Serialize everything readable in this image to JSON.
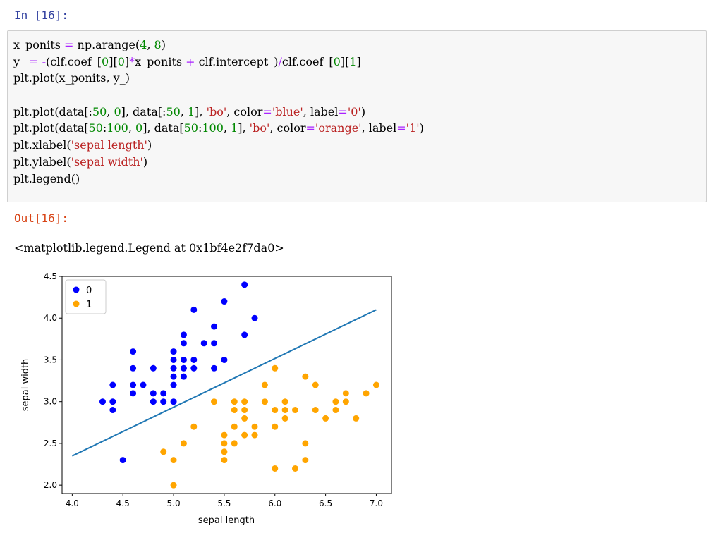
{
  "cell": {
    "in_prompt": "In [16]:",
    "out_prompt": "Out[16]:",
    "output_text": "<matplotlib.legend.Legend at 0x1bf4e2f7da0>"
  },
  "chart_data": {
    "type": "scatter",
    "xlabel": "sepal length",
    "ylabel": "sepal width",
    "xlim": [
      3.9,
      7.15
    ],
    "ylim": [
      1.9,
      4.5
    ],
    "x_ticks": [
      "4.0",
      "4.5",
      "5.0",
      "5.5",
      "6.0",
      "6.5",
      "7.0"
    ],
    "y_ticks": [
      "2.0",
      "2.5",
      "3.0",
      "3.5",
      "4.0",
      "4.5"
    ],
    "grid": false,
    "legend": "top-left",
    "line": {
      "x": [
        4.0,
        7.0
      ],
      "y": [
        2.35,
        4.1
      ],
      "color": "#1f77b4"
    },
    "series": [
      {
        "name": "0",
        "color": "#0000ff",
        "points": [
          [
            4.3,
            3.0
          ],
          [
            4.4,
            3.2
          ],
          [
            4.4,
            3.0
          ],
          [
            4.4,
            2.9
          ],
          [
            4.5,
            2.3
          ],
          [
            4.6,
            3.6
          ],
          [
            4.6,
            3.4
          ],
          [
            4.6,
            3.2
          ],
          [
            4.6,
            3.1
          ],
          [
            4.7,
            3.2
          ],
          [
            4.8,
            3.4
          ],
          [
            4.8,
            3.1
          ],
          [
            4.8,
            3.0
          ],
          [
            4.9,
            3.1
          ],
          [
            4.9,
            3.0
          ],
          [
            5.0,
            3.6
          ],
          [
            5.0,
            3.5
          ],
          [
            5.0,
            3.4
          ],
          [
            5.0,
            3.3
          ],
          [
            5.0,
            3.2
          ],
          [
            5.0,
            3.0
          ],
          [
            5.1,
            3.8
          ],
          [
            5.1,
            3.7
          ],
          [
            5.1,
            3.5
          ],
          [
            5.1,
            3.4
          ],
          [
            5.1,
            3.3
          ],
          [
            5.2,
            4.1
          ],
          [
            5.2,
            3.5
          ],
          [
            5.2,
            3.4
          ],
          [
            5.3,
            3.7
          ],
          [
            5.4,
            3.9
          ],
          [
            5.4,
            3.7
          ],
          [
            5.4,
            3.4
          ],
          [
            5.5,
            4.2
          ],
          [
            5.5,
            3.5
          ],
          [
            5.7,
            4.4
          ],
          [
            5.7,
            3.8
          ],
          [
            5.8,
            4.0
          ]
        ]
      },
      {
        "name": "1",
        "color": "#ffa500",
        "points": [
          [
            4.9,
            2.4
          ],
          [
            5.0,
            2.3
          ],
          [
            5.0,
            2.0
          ],
          [
            5.1,
            2.5
          ],
          [
            5.2,
            2.7
          ],
          [
            5.4,
            3.0
          ],
          [
            5.5,
            2.6
          ],
          [
            5.5,
            2.5
          ],
          [
            5.5,
            2.4
          ],
          [
            5.5,
            2.3
          ],
          [
            5.6,
            3.0
          ],
          [
            5.6,
            2.9
          ],
          [
            5.6,
            2.7
          ],
          [
            5.6,
            2.5
          ],
          [
            5.7,
            3.0
          ],
          [
            5.7,
            2.9
          ],
          [
            5.7,
            2.8
          ],
          [
            5.7,
            2.6
          ],
          [
            5.8,
            2.7
          ],
          [
            5.8,
            2.6
          ],
          [
            5.9,
            3.2
          ],
          [
            5.9,
            3.0
          ],
          [
            6.0,
            3.4
          ],
          [
            6.0,
            2.9
          ],
          [
            6.0,
            2.7
          ],
          [
            6.0,
            2.2
          ],
          [
            6.1,
            3.0
          ],
          [
            6.1,
            2.9
          ],
          [
            6.1,
            2.8
          ],
          [
            6.2,
            2.9
          ],
          [
            6.2,
            2.2
          ],
          [
            6.3,
            3.3
          ],
          [
            6.3,
            2.5
          ],
          [
            6.3,
            2.3
          ],
          [
            6.4,
            3.2
          ],
          [
            6.4,
            2.9
          ],
          [
            6.5,
            2.8
          ],
          [
            6.6,
            3.0
          ],
          [
            6.6,
            2.9
          ],
          [
            6.7,
            3.1
          ],
          [
            6.7,
            3.0
          ],
          [
            6.8,
            2.8
          ],
          [
            6.9,
            3.1
          ],
          [
            7.0,
            3.2
          ]
        ]
      }
    ]
  }
}
